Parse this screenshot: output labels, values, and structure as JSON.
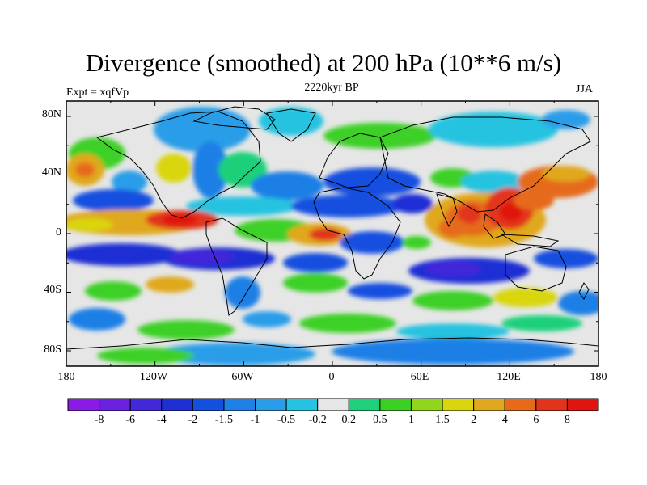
{
  "title": "Divergence (smoothed) at 200 hPa (10**6 m/s)",
  "experiment": "Expt = xqfVp",
  "period": "2220kyr BP",
  "season": "JJA",
  "y_axis_labels": [
    "80N",
    "40N",
    "0",
    "40S",
    "80S"
  ],
  "x_axis_labels": [
    "180",
    "120W",
    "60W",
    "0",
    "60E",
    "120E",
    "180"
  ],
  "colorbar": {
    "labels": [
      "-8",
      "-6",
      "-4",
      "-2",
      "-1.5",
      "-1",
      "-0.5",
      "-0.2",
      "0.2",
      "0.5",
      "1",
      "1.5",
      "2",
      "4",
      "6",
      "8"
    ],
    "colors": [
      "#8a1be6",
      "#6a22e0",
      "#4328d9",
      "#1f2fd4",
      "#1450e0",
      "#1e7fe6",
      "#2b9de8",
      "#26c3e0",
      "#e6e6e6",
      "#1fd07a",
      "#3cd025",
      "#8fd61c",
      "#d9d60e",
      "#e0a81e",
      "#e66a1a",
      "#e2341c",
      "#e01410"
    ]
  },
  "colors": {
    "ocean_bg": "#e6e6e6",
    "coast": "#000000"
  }
}
